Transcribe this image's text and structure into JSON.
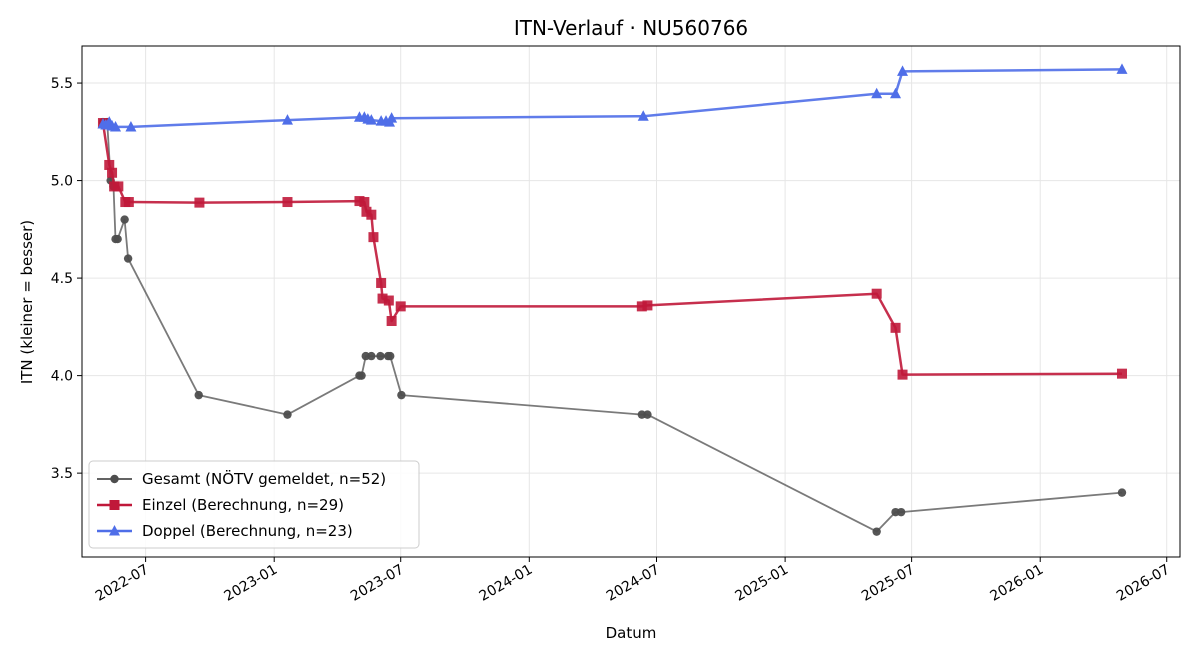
{
  "chart_data": {
    "type": "line",
    "title": "ITN-Verlauf · NU560766",
    "xlabel": "Datum",
    "ylabel": "ITN  (kleiner = besser)",
    "x_ticks": [
      "2022-07",
      "2023-01",
      "2023-07",
      "2024-01",
      "2024-07",
      "2025-01",
      "2025-07",
      "2026-01",
      "2026-07"
    ],
    "y_ticks": [
      "3.5",
      "4.0",
      "4.5",
      "5.0",
      "5.5"
    ],
    "xlim": [
      "2022-04-01",
      "2026-07-20"
    ],
    "ylim": [
      3.07,
      5.69
    ],
    "grid": true,
    "legend_position": "bottom-left",
    "series": [
      {
        "name": "Gesamt (NÖTV gemeldet, n=52)",
        "color": "#4d4d4d",
        "marker": "circle",
        "points": [
          {
            "x": "2022-05-01",
            "y": 5.3
          },
          {
            "x": "2022-05-07",
            "y": 5.3
          },
          {
            "x": "2022-05-12",
            "y": 5.0
          },
          {
            "x": "2022-05-16",
            "y": 4.97
          },
          {
            "x": "2022-05-19",
            "y": 4.7
          },
          {
            "x": "2022-05-22",
            "y": 4.7
          },
          {
            "x": "2022-06-01",
            "y": 4.8
          },
          {
            "x": "2022-06-06",
            "y": 4.6
          },
          {
            "x": "2022-09-15",
            "y": 3.9
          },
          {
            "x": "2023-01-20",
            "y": 3.8
          },
          {
            "x": "2023-05-03",
            "y": 4.0
          },
          {
            "x": "2023-05-06",
            "y": 4.0
          },
          {
            "x": "2023-05-12",
            "y": 4.1
          },
          {
            "x": "2023-05-20",
            "y": 4.1
          },
          {
            "x": "2023-06-02",
            "y": 4.1
          },
          {
            "x": "2023-06-13",
            "y": 4.1
          },
          {
            "x": "2023-06-16",
            "y": 4.1
          },
          {
            "x": "2023-07-02",
            "y": 3.9
          },
          {
            "x": "2024-06-10",
            "y": 3.8
          },
          {
            "x": "2024-06-18",
            "y": 3.8
          },
          {
            "x": "2025-05-12",
            "y": 3.2
          },
          {
            "x": "2025-06-08",
            "y": 3.3
          },
          {
            "x": "2025-06-16",
            "y": 3.3
          },
          {
            "x": "2026-04-28",
            "y": 3.4
          }
        ]
      },
      {
        "name": "Einzel (Berechnung, n=29)",
        "color": "#c0183a",
        "marker": "square",
        "points": [
          {
            "x": "2022-05-01",
            "y": 5.295
          },
          {
            "x": "2022-05-10",
            "y": 5.08
          },
          {
            "x": "2022-05-14",
            "y": 5.04
          },
          {
            "x": "2022-05-17",
            "y": 4.97
          },
          {
            "x": "2022-05-23",
            "y": 4.97
          },
          {
            "x": "2022-06-02",
            "y": 4.89
          },
          {
            "x": "2022-06-07",
            "y": 4.89
          },
          {
            "x": "2022-09-16",
            "y": 4.887
          },
          {
            "x": "2023-01-20",
            "y": 4.89
          },
          {
            "x": "2023-05-03",
            "y": 4.895
          },
          {
            "x": "2023-05-10",
            "y": 4.89
          },
          {
            "x": "2023-05-13",
            "y": 4.84
          },
          {
            "x": "2023-05-20",
            "y": 4.825
          },
          {
            "x": "2023-05-23",
            "y": 4.71
          },
          {
            "x": "2023-06-03",
            "y": 4.475
          },
          {
            "x": "2023-06-05",
            "y": 4.395
          },
          {
            "x": "2023-06-14",
            "y": 4.385
          },
          {
            "x": "2023-06-18",
            "y": 4.28
          },
          {
            "x": "2023-07-01",
            "y": 4.355
          },
          {
            "x": "2024-06-10",
            "y": 4.355
          },
          {
            "x": "2024-06-18",
            "y": 4.36
          },
          {
            "x": "2025-05-12",
            "y": 4.42
          },
          {
            "x": "2025-06-08",
            "y": 4.245
          },
          {
            "x": "2025-06-18",
            "y": 4.005
          },
          {
            "x": "2026-04-28",
            "y": 4.01
          }
        ]
      },
      {
        "name": "Doppel (Berechnung, n=23)",
        "color": "#4f6ee8",
        "marker": "triangle",
        "points": [
          {
            "x": "2022-05-01",
            "y": 5.29
          },
          {
            "x": "2022-05-05",
            "y": 5.285
          },
          {
            "x": "2022-05-10",
            "y": 5.3
          },
          {
            "x": "2022-05-14",
            "y": 5.28
          },
          {
            "x": "2022-05-19",
            "y": 5.275
          },
          {
            "x": "2022-06-10",
            "y": 5.275
          },
          {
            "x": "2023-01-20",
            "y": 5.31
          },
          {
            "x": "2023-05-03",
            "y": 5.325
          },
          {
            "x": "2023-05-10",
            "y": 5.325
          },
          {
            "x": "2023-05-15",
            "y": 5.315
          },
          {
            "x": "2023-05-20",
            "y": 5.31
          },
          {
            "x": "2023-06-03",
            "y": 5.305
          },
          {
            "x": "2023-06-10",
            "y": 5.305
          },
          {
            "x": "2023-06-15",
            "y": 5.3
          },
          {
            "x": "2023-06-18",
            "y": 5.32
          },
          {
            "x": "2024-06-12",
            "y": 5.33
          },
          {
            "x": "2025-05-12",
            "y": 5.445
          },
          {
            "x": "2025-06-08",
            "y": 5.445
          },
          {
            "x": "2025-06-18",
            "y": 5.56
          },
          {
            "x": "2026-04-28",
            "y": 5.57
          }
        ]
      }
    ]
  }
}
